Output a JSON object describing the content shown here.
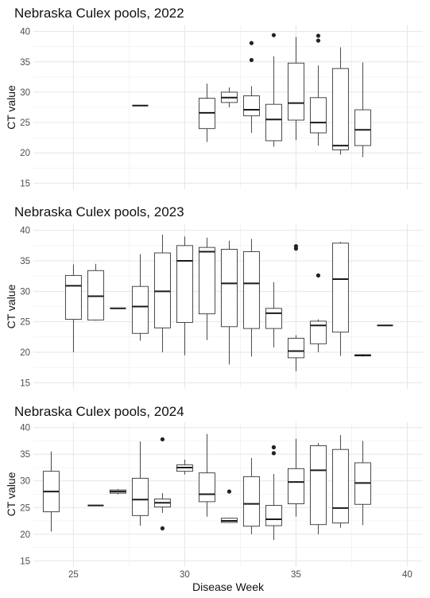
{
  "chart_data": [
    {
      "type": "boxplot",
      "title": "Nebraska Culex pools, 2022",
      "ylabel": "CT value",
      "ylim": [
        14,
        41
      ],
      "yticks": [
        15,
        20,
        25,
        30,
        35,
        40
      ],
      "boxes": [
        {
          "x": 28,
          "low": 27.8,
          "q1": 27.8,
          "median": 27.8,
          "q3": 27.8,
          "high": 27.8,
          "outliers": []
        },
        {
          "x": 31,
          "low": 21.8,
          "q1": 24.0,
          "median": 26.6,
          "q3": 29.0,
          "high": 31.4,
          "outliers": []
        },
        {
          "x": 32,
          "low": 27.5,
          "q1": 28.3,
          "median": 29.1,
          "q3": 30.0,
          "high": 30.8,
          "outliers": []
        },
        {
          "x": 33,
          "low": 23.3,
          "q1": 26.1,
          "median": 27.1,
          "q3": 29.4,
          "high": 31.0,
          "outliers": [
            35.3,
            38.1
          ]
        },
        {
          "x": 34,
          "low": 21.0,
          "q1": 22.0,
          "median": 25.5,
          "q3": 28.0,
          "high": 35.9,
          "outliers": [
            39.4
          ]
        },
        {
          "x": 35,
          "low": 22.1,
          "q1": 25.4,
          "median": 28.2,
          "q3": 34.8,
          "high": 39.1,
          "outliers": []
        },
        {
          "x": 36,
          "low": 21.2,
          "q1": 23.3,
          "median": 25.0,
          "q3": 29.1,
          "high": 34.4,
          "outliers": [
            38.5,
            39.3
          ]
        },
        {
          "x": 37,
          "low": 19.7,
          "q1": 20.5,
          "median": 21.2,
          "q3": 33.9,
          "high": 37.4,
          "outliers": []
        },
        {
          "x": 38,
          "low": 19.3,
          "q1": 21.2,
          "median": 23.8,
          "q3": 27.1,
          "high": 34.9,
          "outliers": []
        }
      ]
    },
    {
      "type": "boxplot",
      "title": "Nebraska Culex pools, 2023",
      "ylabel": "CT value",
      "ylim": [
        14,
        41
      ],
      "yticks": [
        15,
        20,
        25,
        30,
        35,
        40
      ],
      "boxes": [
        {
          "x": 25,
          "low": 20.0,
          "q1": 25.4,
          "median": 30.9,
          "q3": 32.6,
          "high": 34.4,
          "outliers": []
        },
        {
          "x": 26,
          "low": 25.2,
          "q1": 25.3,
          "median": 29.2,
          "q3": 33.4,
          "high": 34.5,
          "outliers": []
        },
        {
          "x": 27,
          "low": 27.2,
          "q1": 27.2,
          "median": 27.2,
          "q3": 27.2,
          "high": 27.2,
          "outliers": []
        },
        {
          "x": 28,
          "low": 21.9,
          "q1": 23.1,
          "median": 27.5,
          "q3": 30.8,
          "high": 36.1,
          "outliers": []
        },
        {
          "x": 29,
          "low": 20.0,
          "q1": 24.0,
          "median": 30.0,
          "q3": 36.3,
          "high": 39.3,
          "outliers": []
        },
        {
          "x": 30,
          "low": 19.5,
          "q1": 24.9,
          "median": 35.0,
          "q3": 37.5,
          "high": 39.0,
          "outliers": []
        },
        {
          "x": 31,
          "low": 22.0,
          "q1": 26.3,
          "median": 36.5,
          "q3": 37.2,
          "high": 38.8,
          "outliers": []
        },
        {
          "x": 32,
          "low": 18.0,
          "q1": 24.2,
          "median": 31.3,
          "q3": 36.9,
          "high": 38.3,
          "outliers": []
        },
        {
          "x": 33,
          "low": 19.3,
          "q1": 23.9,
          "median": 31.3,
          "q3": 36.5,
          "high": 38.6,
          "outliers": []
        },
        {
          "x": 34,
          "low": 20.8,
          "q1": 23.9,
          "median": 26.4,
          "q3": 27.2,
          "high": 31.5,
          "outliers": []
        },
        {
          "x": 35,
          "low": 16.9,
          "q1": 19.1,
          "median": 20.2,
          "q3": 22.3,
          "high": 22.8,
          "outliers": [
            37.0,
            37.4
          ]
        },
        {
          "x": 36,
          "low": 20.0,
          "q1": 21.4,
          "median": 24.4,
          "q3": 25.1,
          "high": 25.4,
          "outliers": [
            32.6
          ]
        },
        {
          "x": 37,
          "low": 19.4,
          "q1": 23.3,
          "median": 32.0,
          "q3": 37.9,
          "high": 38.1,
          "outliers": []
        },
        {
          "x": 38,
          "low": 19.3,
          "q1": 19.4,
          "median": 19.5,
          "q3": 19.6,
          "high": 19.7,
          "outliers": []
        },
        {
          "x": 39,
          "low": 24.4,
          "q1": 24.4,
          "median": 24.4,
          "q3": 24.4,
          "high": 24.4,
          "outliers": []
        }
      ]
    },
    {
      "type": "boxplot",
      "title": "Nebraska Culex pools, 2024",
      "ylabel": "CT value",
      "xlabel": "Disease Week",
      "ylim": [
        14,
        41
      ],
      "yticks": [
        15,
        20,
        25,
        30,
        35,
        40
      ],
      "xticks": [
        25,
        30,
        35,
        40
      ],
      "boxes": [
        {
          "x": 24,
          "low": 20.5,
          "q1": 24.2,
          "median": 28.0,
          "q3": 31.8,
          "high": 35.5,
          "outliers": []
        },
        {
          "x": 26,
          "low": 25.4,
          "q1": 25.4,
          "median": 25.4,
          "q3": 25.4,
          "high": 25.4,
          "outliers": []
        },
        {
          "x": 27,
          "low": 27.5,
          "q1": 27.7,
          "median": 28.0,
          "q3": 28.3,
          "high": 28.5,
          "outliers": []
        },
        {
          "x": 28,
          "low": 21.6,
          "q1": 23.5,
          "median": 26.5,
          "q3": 30.5,
          "high": 37.4,
          "outliers": []
        },
        {
          "x": 29,
          "low": 24.0,
          "q1": 25.1,
          "median": 25.9,
          "q3": 26.6,
          "high": 27.7,
          "outliers": [
            21.1,
            37.8
          ]
        },
        {
          "x": 30,
          "low": 31.2,
          "q1": 31.8,
          "median": 32.5,
          "q3": 33.0,
          "high": 34.0,
          "outliers": []
        },
        {
          "x": 31,
          "low": 23.3,
          "q1": 26.1,
          "median": 27.5,
          "q3": 31.5,
          "high": 38.8,
          "outliers": []
        },
        {
          "x": 32,
          "low": 22.1,
          "q1": 22.2,
          "median": 22.5,
          "q3": 23.0,
          "high": 23.1,
          "outliers": [
            28.0
          ]
        },
        {
          "x": 33,
          "low": 20.0,
          "q1": 21.5,
          "median": 25.7,
          "q3": 30.8,
          "high": 34.3,
          "outliers": []
        },
        {
          "x": 34,
          "low": 18.9,
          "q1": 21.6,
          "median": 22.8,
          "q3": 25.4,
          "high": 31.3,
          "outliers": [
            35.2,
            36.3
          ]
        },
        {
          "x": 35,
          "low": 23.3,
          "q1": 25.7,
          "median": 29.8,
          "q3": 32.3,
          "high": 37.9,
          "outliers": []
        },
        {
          "x": 36,
          "low": 20.0,
          "q1": 21.8,
          "median": 32.0,
          "q3": 36.6,
          "high": 37.1,
          "outliers": []
        },
        {
          "x": 37,
          "low": 21.2,
          "q1": 22.1,
          "median": 24.9,
          "q3": 35.9,
          "high": 38.6,
          "outliers": []
        },
        {
          "x": 38,
          "low": 21.7,
          "q1": 25.6,
          "median": 29.6,
          "q3": 33.4,
          "high": 37.5,
          "outliers": []
        }
      ]
    }
  ],
  "shared": {
    "xlim": [
      23.2,
      40.7
    ],
    "xlabel": "Disease Week",
    "grid": true,
    "legend": "none",
    "colors": {
      "box_fill": "#ffffff",
      "box_line": "#333333",
      "grid": "#e6e6e6"
    }
  }
}
